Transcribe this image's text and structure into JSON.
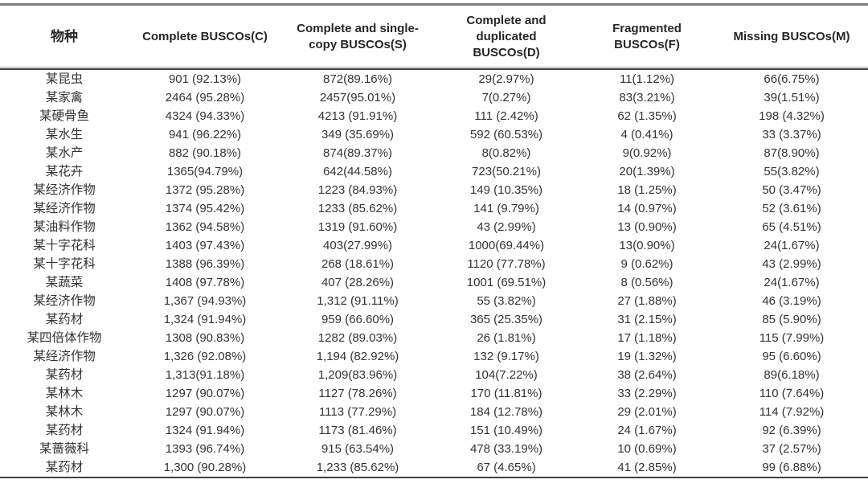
{
  "table": {
    "headers": [
      "物种",
      "Complete BUSCOs(C)",
      "Complete and single-copy BUSCOs(S)",
      "Complete and duplicated BUSCOs(D)",
      "Fragmented BUSCOs(F)",
      "Missing BUSCOs(M)"
    ],
    "rows": [
      [
        "某昆虫",
        "901 (92.13%)",
        "872(89.16%)",
        "29(2.97%)",
        "11(1.12%)",
        "66(6.75%)"
      ],
      [
        "某家禽",
        "2464 (95.28%)",
        "2457(95.01%)",
        "7(0.27%)",
        "83(3.21%)",
        "39(1.51%)"
      ],
      [
        "某硬骨鱼",
        "4324 (94.33%)",
        "4213 (91.91%)",
        "111 (2.42%)",
        "62 (1.35%)",
        "198 (4.32%)"
      ],
      [
        "某水生",
        "941 (96.22%)",
        "349 (35.69%)",
        "592 (60.53%)",
        "4 (0.41%)",
        "33 (3.37%)"
      ],
      [
        "某水产",
        "882 (90.18%)",
        "874(89.37%)",
        "8(0.82%)",
        "9(0.92%)",
        "87(8.90%)"
      ],
      [
        "某花卉",
        "1365(94.79%)",
        "642(44.58%)",
        "723(50.21%)",
        "20(1.39%)",
        "55(3.82%)"
      ],
      [
        "某经济作物",
        "1372 (95.28%)",
        "1223 (84.93%)",
        "149 (10.35%)",
        "18 (1.25%)",
        "50 (3.47%)"
      ],
      [
        "某经济作物",
        "1374 (95.42%)",
        "1233 (85.62%)",
        "141 (9.79%)",
        "14 (0.97%)",
        "52 (3.61%)"
      ],
      [
        "某油料作物",
        "1362 (94.58%)",
        "1319 (91.60%)",
        "43 (2.99%)",
        "13 (0.90%)",
        "65 (4.51%)"
      ],
      [
        "某十字花科",
        "1403 (97.43%)",
        "403(27.99%)",
        "1000(69.44%)",
        "13(0.90%)",
        "24(1.67%)"
      ],
      [
        "某十字花科",
        "1388 (96.39%)",
        "268 (18.61%)",
        "1120 (77.78%)",
        "9 (0.62%)",
        "43 (2.99%)"
      ],
      [
        "某蔬菜",
        "1408 (97.78%)",
        "407 (28.26%)",
        "1001 (69.51%)",
        "8 (0.56%)",
        "24(1.67%)"
      ],
      [
        "某经济作物",
        "1,367 (94.93%)",
        "1,312 (91.11%)",
        "55 (3.82%)",
        "27 (1.88%)",
        "46 (3.19%)"
      ],
      [
        "某药材",
        "1,324 (91.94%)",
        "959 (66.60%)",
        "365 (25.35%)",
        "31 (2.15%)",
        "85 (5.90%)"
      ],
      [
        "某四倍体作物",
        "1308 (90.83%)",
        "1282 (89.03%)",
        "26 (1.81%)",
        "17 (1.18%)",
        "115 (7.99%)"
      ],
      [
        "某经济作物",
        "1,326 (92.08%)",
        "1,194 (82.92%)",
        "132 (9.17%)",
        "19 (1.32%)",
        "95 (6.60%)"
      ],
      [
        "某药材",
        "1,313(91.18%)",
        "1,209(83.96%)",
        "104(7.22%)",
        "38 (2.64%)",
        "89(6.18%)"
      ],
      [
        "某林木",
        "1297 (90.07%)",
        "1127 (78.26%)",
        "170 (11.81%)",
        "33 (2.29%)",
        "110 (7.64%)"
      ],
      [
        "某林木",
        "1297 (90.07%)",
        "1113 (77.29%)",
        "184 (12.78%)",
        "29 (2.01%)",
        "114 (7.92%)"
      ],
      [
        "某药材",
        "1324 (91.94%)",
        "1173 (81.46%)",
        "151 (10.49%)",
        "24 (1.67%)",
        "92 (6.39%)"
      ],
      [
        "某蔷薇科",
        "1393 (96.74%)",
        "915 (63.54%)",
        "478 (33.19%)",
        "10 (0.69%)",
        "37 (2.57%)"
      ],
      [
        "某药材",
        "1,300 (90.28%)",
        "1,233 (85.62%)",
        "67 (4.65%)",
        "41 (2.85%)",
        "99 (6.88%)"
      ]
    ]
  },
  "colors": {
    "top_rule": "#7f7f7f",
    "header_rule_thin": "#a3a3a3",
    "header_rule_thick": "#404040",
    "bottom_rule": "#404040",
    "text": "#333333",
    "header_text": "#262626"
  }
}
